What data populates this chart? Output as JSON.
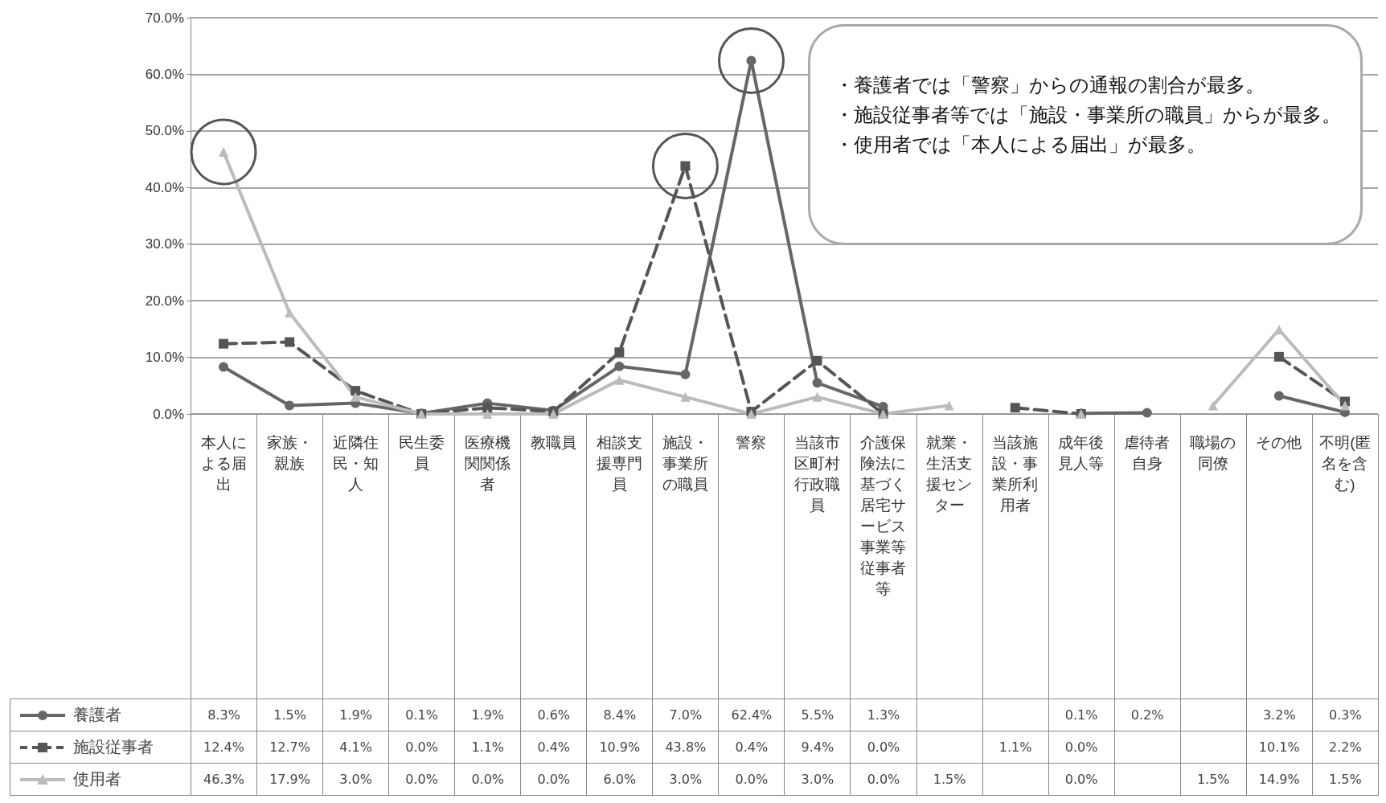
{
  "chart_data": {
    "type": "line",
    "categories": [
      "本人による届出",
      "家族・親族",
      "近隣住民・知人",
      "民生委員",
      "医療機関関係者",
      "教職員",
      "相談支援専門員",
      "施設・事業所の職員",
      "警察",
      "当該市区町村行政職員",
      "介護保険法に基づく居宅サービス事業等従事者等",
      "就業・生活支援センター",
      "当該施設・事業所利用者",
      "成年後見人等",
      "虐待者自身",
      "職場の同僚",
      "その他",
      "不明(匿名を含む)"
    ],
    "series": [
      {
        "name": "養護者",
        "color": "#666666",
        "marker": "circle",
        "line_style": "solid",
        "values": [
          8.3,
          1.5,
          1.9,
          0.1,
          1.9,
          0.6,
          8.4,
          7.0,
          62.4,
          5.5,
          1.3,
          null,
          null,
          0.1,
          0.2,
          null,
          3.2,
          0.3
        ],
        "value_labels": [
          "8.3%",
          "1.5%",
          "1.9%",
          "0.1%",
          "1.9%",
          "0.6%",
          "8.4%",
          "7.0%",
          "62.4%",
          "5.5%",
          "1.3%",
          null,
          null,
          "0.1%",
          "0.2%",
          null,
          "3.2%",
          "0.3%"
        ]
      },
      {
        "name": "施設従事者",
        "color": "#555555",
        "marker": "square",
        "line_style": "dashed",
        "values": [
          12.4,
          12.7,
          4.1,
          0.0,
          1.1,
          0.4,
          10.9,
          43.8,
          0.4,
          9.4,
          0.0,
          null,
          1.1,
          0.0,
          null,
          null,
          10.1,
          2.2
        ],
        "value_labels": [
          "12.4%",
          "12.7%",
          "4.1%",
          "0.0%",
          "1.1%",
          "0.4%",
          "10.9%",
          "43.8%",
          "0.4%",
          "9.4%",
          "0.0%",
          null,
          "1.1%",
          "0.0%",
          null,
          null,
          "10.1%",
          "2.2%"
        ]
      },
      {
        "name": "使用者",
        "color": "#bbbbbb",
        "marker": "triangle",
        "line_style": "solid",
        "values": [
          46.3,
          17.9,
          3.0,
          0.0,
          0.0,
          0.0,
          6.0,
          3.0,
          0.0,
          3.0,
          0.0,
          1.5,
          null,
          0.0,
          null,
          1.5,
          14.9,
          1.5
        ],
        "value_labels": [
          "46.3%",
          "17.9%",
          "3.0%",
          "0.0%",
          "0.0%",
          "0.0%",
          "6.0%",
          "3.0%",
          "0.0%",
          "3.0%",
          "0.0%",
          "1.5%",
          null,
          "0.0%",
          null,
          "1.5%",
          "14.9%",
          "1.5%"
        ]
      }
    ],
    "ylim": [
      0,
      70
    ],
    "yticks": [
      {
        "value": 0,
        "label": "0.0%"
      },
      {
        "value": 10,
        "label": "10.0%"
      },
      {
        "value": 20,
        "label": "20.0%"
      },
      {
        "value": 30,
        "label": "30.0%"
      },
      {
        "value": 40,
        "label": "40.0%"
      },
      {
        "value": 50,
        "label": "50.0%"
      },
      {
        "value": 60,
        "label": "60.0%"
      },
      {
        "value": 70,
        "label": "70.0%"
      }
    ],
    "grid": "y",
    "legend": "bottom left",
    "annotations": [
      "・養護者では「警察」からの通報の割合が最多。",
      "・施設従事者等では「施設・事業所の職員」からが最多。",
      "・使用者では「本人による届出」が最多。"
    ]
  }
}
